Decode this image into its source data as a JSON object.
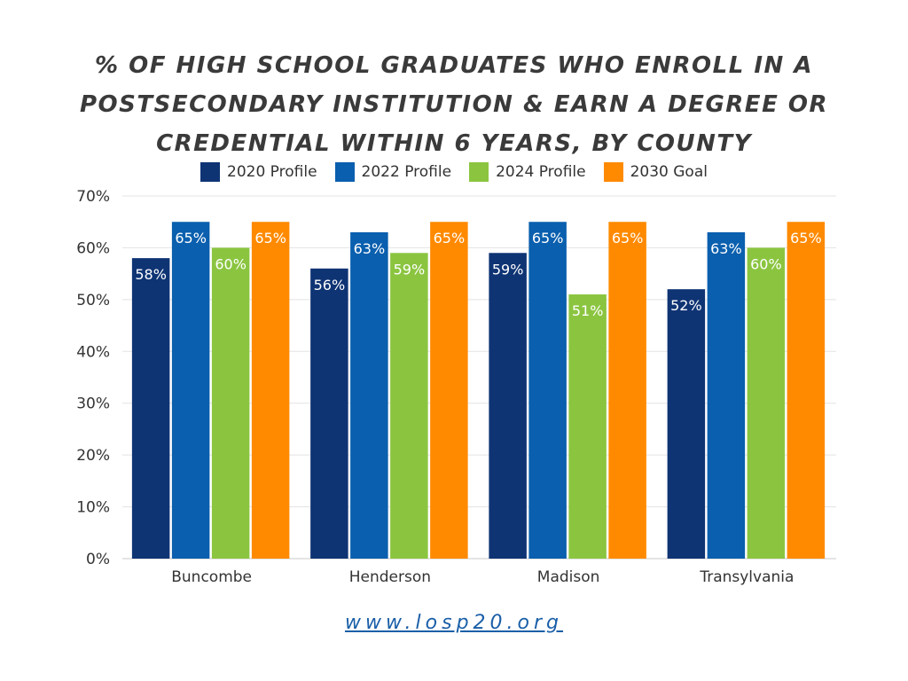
{
  "title_lines": [
    "% OF HIGH SCHOOL GRADUATES WHO ENROLL IN A",
    "POSTSECONDARY INSTITUTION & EARN A DEGREE OR",
    "CREDENTIAL WITHIN 6 YEARS, BY COUNTY"
  ],
  "footer": {
    "link_text": "www.losp20.org"
  },
  "chart_data": {
    "type": "bar",
    "title": "% OF HIGH SCHOOL GRADUATES WHO ENROLL IN A POSTSECONDARY INSTITUTION & EARN A DEGREE OR CREDENTIAL WITHIN 6 YEARS, BY COUNTY",
    "categories": [
      "Buncombe",
      "Henderson",
      "Madison",
      "Transylvania"
    ],
    "series": [
      {
        "name": "2020 Profile",
        "color": "#0f3474",
        "values": [
          58,
          56,
          59,
          52
        ]
      },
      {
        "name": "2022 Profile",
        "color": "#0a5fae",
        "values": [
          65,
          63,
          65,
          63
        ]
      },
      {
        "name": "2024 Profile",
        "color": "#8bc540",
        "values": [
          60,
          59,
          51,
          60
        ]
      },
      {
        "name": "2030 Goal",
        "color": "#ff8a00",
        "values": [
          65,
          65,
          65,
          65
        ]
      }
    ],
    "value_suffix": "%",
    "ylim": [
      0,
      70
    ],
    "yticks": [
      0,
      10,
      20,
      30,
      40,
      50,
      60,
      70
    ],
    "ytick_labels": [
      "0%",
      "10%",
      "20%",
      "30%",
      "40%",
      "50%",
      "60%",
      "70%"
    ],
    "legend_position": "top",
    "grid": true
  }
}
